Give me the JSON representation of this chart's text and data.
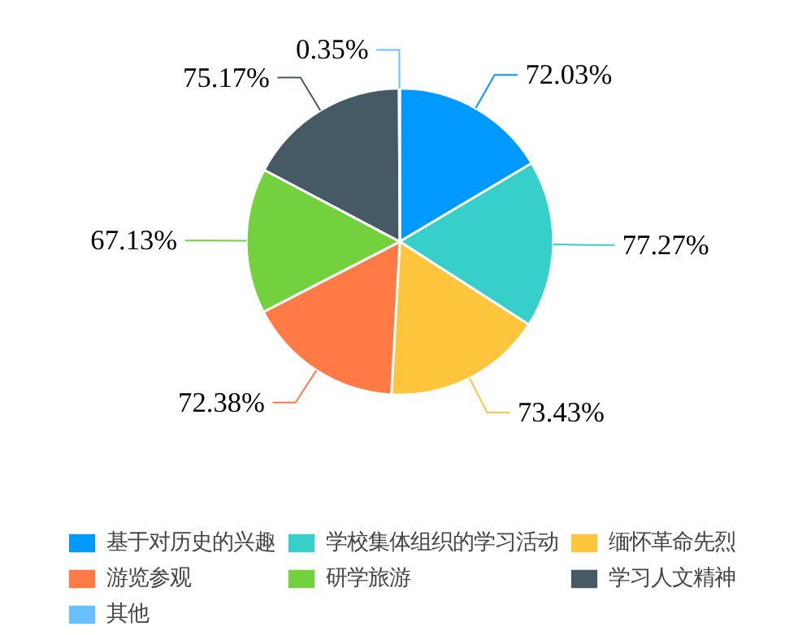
{
  "chart_data": {
    "type": "pie",
    "categories": [
      "基于对历史的兴趣",
      "学校集体组织的学习活动",
      "缅怀革命先烈",
      "游览参观",
      "研学旅游",
      "学习人文精神",
      "其他"
    ],
    "values": [
      72.03,
      77.27,
      73.43,
      72.38,
      67.13,
      75.17,
      0.35
    ],
    "value_labels": [
      "72.03%",
      "77.27%",
      "73.43%",
      "72.38%",
      "67.13%",
      "75.17%",
      "0.35%"
    ],
    "colors": [
      "#0099ff",
      "#36cfc9",
      "#ffc53d",
      "#ff7a45",
      "#73d13d",
      "#465a65",
      "#69c0ff"
    ],
    "legend": "bottom"
  }
}
